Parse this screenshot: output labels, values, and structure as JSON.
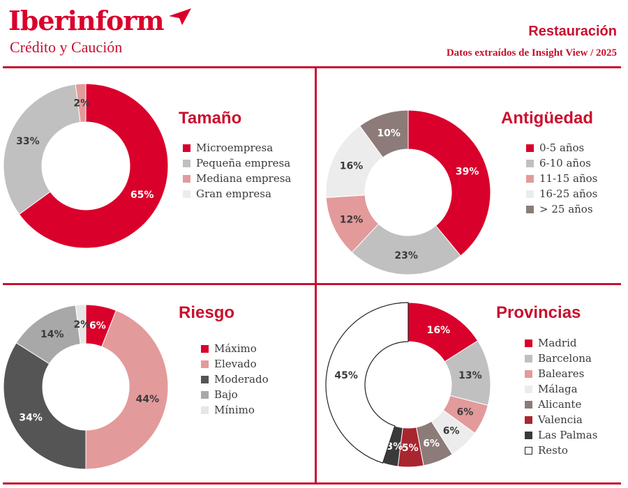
{
  "header": {
    "brand": "Iberinform",
    "brand_subtitle": "Crédito y Caución",
    "title": "Restauración",
    "subtitle": "Datos extraídos de Insight View / 2025"
  },
  "colors": {
    "accent": "#c8102e"
  },
  "chart_data": [
    {
      "type": "pie",
      "title": "Tamaño",
      "legend_placement": "right",
      "labels": [
        "Microempresa",
        "Pequeña empresa",
        "Mediana empresa",
        "Gran empresa"
      ],
      "values": [
        65,
        33,
        2,
        0
      ],
      "value_labels": [
        "65%",
        "33%",
        "2%",
        ""
      ],
      "colors": [
        "#d9002b",
        "#c0c0c0",
        "#e39a9b",
        "#ececec"
      ]
    },
    {
      "type": "pie",
      "title": "Antigüedad",
      "legend_placement": "right",
      "labels": [
        "0-5 años",
        "6-10 años",
        "11-15 años",
        "16-25 años",
        "> 25 años"
      ],
      "values": [
        39,
        23,
        12,
        16,
        10
      ],
      "value_labels": [
        "39%",
        "23%",
        "12%",
        "16%",
        "10%"
      ],
      "colors": [
        "#d9002b",
        "#c0c0c0",
        "#e39a9b",
        "#ececec",
        "#8c7b78"
      ]
    },
    {
      "type": "pie",
      "title": "Riesgo",
      "legend_placement": "right",
      "labels": [
        "Máximo",
        "Elevado",
        "Moderado",
        "Bajo",
        "Mínimo"
      ],
      "values": [
        6,
        44,
        34,
        14,
        2
      ],
      "value_labels": [
        "6%",
        "44%",
        "34%",
        "14%",
        "2%"
      ],
      "colors": [
        "#d9002b",
        "#e39a9b",
        "#555555",
        "#a8a8a8",
        "#e6e6e6"
      ]
    },
    {
      "type": "pie",
      "title": "Provincias",
      "legend_placement": "right",
      "labels": [
        "Madrid",
        "Barcelona",
        "Baleares",
        "Málaga",
        "Alicante",
        "Valencia",
        "Las Palmas",
        "Resto"
      ],
      "values": [
        16,
        13,
        6,
        6,
        6,
        5,
        3,
        45
      ],
      "value_labels": [
        "16%",
        "13%",
        "6%",
        "6%",
        "6%",
        "5%",
        "3%",
        "45%"
      ],
      "colors": [
        "#d9002b",
        "#c0c0c0",
        "#e39a9b",
        "#ececec",
        "#8c7b78",
        "#a8262f",
        "#3a3a3a",
        "#ffffff"
      ]
    }
  ]
}
